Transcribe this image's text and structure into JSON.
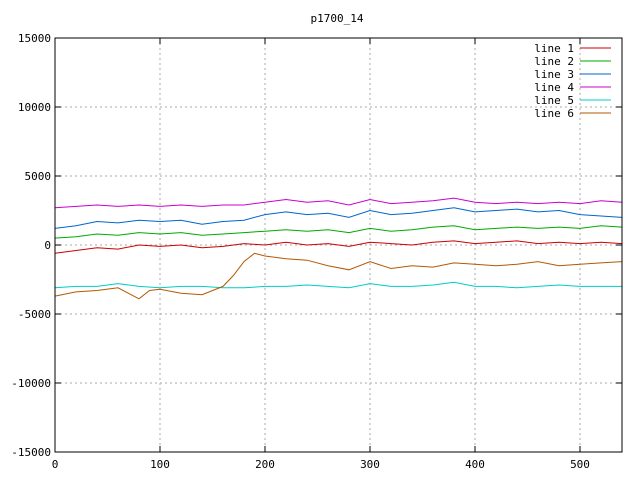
{
  "chart_data": {
    "type": "line",
    "title": "p1700_14",
    "xlabel": "",
    "ylabel": "",
    "xlim": [
      0,
      540
    ],
    "ylim": [
      -15000,
      15000
    ],
    "xticks": [
      0,
      100,
      200,
      300,
      400,
      500
    ],
    "yticks": [
      -15000,
      -10000,
      -5000,
      0,
      5000,
      10000,
      15000
    ],
    "grid": true,
    "legend_position": "top-right",
    "series": [
      {
        "name": "line 1",
        "color": "#cc0000",
        "x": [
          0,
          20,
          40,
          60,
          80,
          100,
          120,
          140,
          160,
          180,
          200,
          220,
          240,
          260,
          280,
          300,
          320,
          340,
          360,
          380,
          400,
          420,
          440,
          460,
          480,
          500,
          520,
          540
        ],
        "y": [
          -600,
          -400,
          -200,
          -300,
          0,
          -100,
          0,
          -200,
          -100,
          100,
          0,
          200,
          0,
          100,
          -100,
          200,
          100,
          0,
          200,
          300,
          100,
          200,
          300,
          100,
          200,
          100,
          200,
          100
        ]
      },
      {
        "name": "line 2",
        "color": "#00aa00",
        "x": [
          0,
          20,
          40,
          60,
          80,
          100,
          120,
          140,
          160,
          180,
          200,
          220,
          240,
          260,
          280,
          300,
          320,
          340,
          360,
          380,
          400,
          420,
          440,
          460,
          480,
          500,
          520,
          540
        ],
        "y": [
          500,
          600,
          800,
          700,
          900,
          800,
          900,
          700,
          800,
          900,
          1000,
          1100,
          1000,
          1100,
          900,
          1200,
          1000,
          1100,
          1300,
          1400,
          1100,
          1200,
          1300,
          1200,
          1300,
          1200,
          1400,
          1300
        ]
      },
      {
        "name": "line 3",
        "color": "#0066cc",
        "x": [
          0,
          20,
          40,
          60,
          80,
          100,
          120,
          140,
          160,
          180,
          200,
          220,
          240,
          260,
          280,
          300,
          320,
          340,
          360,
          380,
          400,
          420,
          440,
          460,
          480,
          500,
          520,
          540
        ],
        "y": [
          1200,
          1400,
          1700,
          1600,
          1800,
          1700,
          1800,
          1500,
          1700,
          1800,
          2200,
          2400,
          2200,
          2300,
          2000,
          2500,
          2200,
          2300,
          2500,
          2700,
          2400,
          2500,
          2600,
          2400,
          2500,
          2200,
          2100,
          2000
        ]
      },
      {
        "name": "line 4",
        "color": "#cc00cc",
        "x": [
          0,
          20,
          40,
          60,
          80,
          100,
          120,
          140,
          160,
          180,
          200,
          220,
          240,
          260,
          280,
          300,
          320,
          340,
          360,
          380,
          400,
          420,
          440,
          460,
          480,
          500,
          520,
          540
        ],
        "y": [
          2700,
          2800,
          2900,
          2800,
          2900,
          2800,
          2900,
          2800,
          2900,
          2900,
          3100,
          3300,
          3100,
          3200,
          2900,
          3300,
          3000,
          3100,
          3200,
          3400,
          3100,
          3000,
          3100,
          3000,
          3100,
          3000,
          3200,
          3100
        ]
      },
      {
        "name": "line 5",
        "color": "#00cccc",
        "x": [
          0,
          20,
          40,
          60,
          80,
          100,
          120,
          140,
          160,
          180,
          200,
          220,
          240,
          260,
          280,
          300,
          320,
          340,
          360,
          380,
          400,
          420,
          440,
          460,
          480,
          500,
          520,
          540
        ],
        "y": [
          -3100,
          -3000,
          -3000,
          -2800,
          -3000,
          -3100,
          -3000,
          -3000,
          -3100,
          -3100,
          -3000,
          -3000,
          -2900,
          -3000,
          -3100,
          -2800,
          -3000,
          -3000,
          -2900,
          -2700,
          -3000,
          -3000,
          -3100,
          -3000,
          -2900,
          -3000,
          -3000,
          -3000
        ]
      },
      {
        "name": "line 6",
        "color": "#b35900",
        "x": [
          0,
          20,
          40,
          60,
          80,
          90,
          100,
          120,
          140,
          160,
          170,
          180,
          190,
          200,
          220,
          240,
          260,
          280,
          300,
          320,
          340,
          360,
          380,
          400,
          420,
          440,
          460,
          480,
          500,
          520,
          540
        ],
        "y": [
          -3700,
          -3400,
          -3300,
          -3100,
          -3900,
          -3300,
          -3200,
          -3500,
          -3600,
          -3000,
          -2200,
          -1200,
          -600,
          -800,
          -1000,
          -1100,
          -1500,
          -1800,
          -1200,
          -1700,
          -1500,
          -1600,
          -1300,
          -1400,
          -1500,
          -1400,
          -1200,
          -1500,
          -1400,
          -1300,
          -1200
        ]
      }
    ]
  }
}
